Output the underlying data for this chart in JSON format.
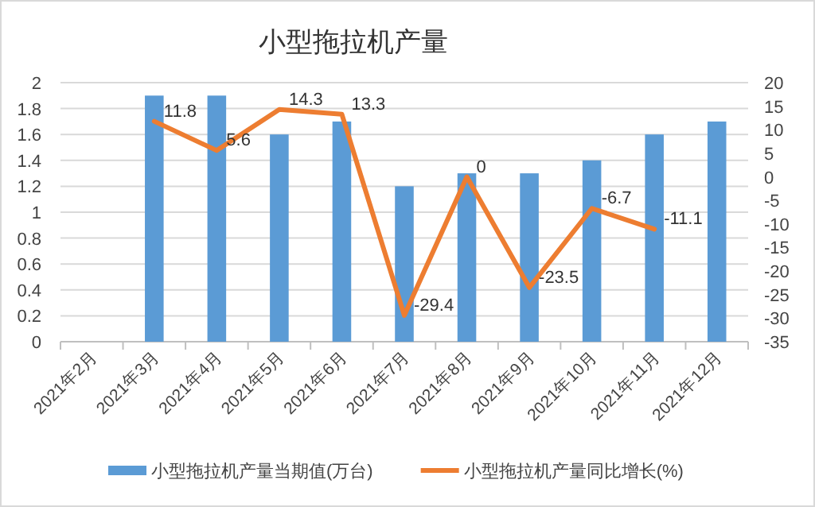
{
  "chart_data": {
    "type": "bar",
    "title": "小型拖拉机产量",
    "categories": [
      "2021年2月",
      "2021年3月",
      "2021年4月",
      "2021年5月",
      "2021年6月",
      "2021年7月",
      "2021年8月",
      "2021年9月",
      "2021年10月",
      "2021年11月",
      "2021年12月"
    ],
    "series": [
      {
        "name": "小型拖拉机产量当期值(万台)",
        "color": "#5b9bd5",
        "values": [
          null,
          1.9,
          1.9,
          1.6,
          1.7,
          1.2,
          1.3,
          1.3,
          1.4,
          1.6,
          1.7
        ]
      },
      {
        "name": "小型拖拉机产量同比增长(%)",
        "type": "line",
        "axis": "y2",
        "color": "#ed7d31",
        "values": [
          null,
          11.8,
          5.6,
          14.3,
          13.3,
          -29.4,
          0,
          -23.5,
          -6.7,
          -11.1,
          null
        ],
        "value_labels": [
          null,
          "11.8",
          "5.6",
          "14.3",
          "13.3",
          "-29.4",
          "0",
          "-23.5",
          "-6.7",
          "-11.1",
          null
        ]
      }
    ],
    "ylim": [
      0,
      2
    ],
    "yticks": [
      0,
      0.2,
      0.4,
      0.6,
      0.8,
      1,
      1.2,
      1.4,
      1.6,
      1.8,
      2
    ],
    "y2lim": [
      -35,
      20
    ],
    "y2ticks": [
      -35,
      -30,
      -25,
      -20,
      -15,
      -10,
      -5,
      0,
      5,
      10,
      15,
      20
    ],
    "grid": "y",
    "legend": "bottom"
  }
}
